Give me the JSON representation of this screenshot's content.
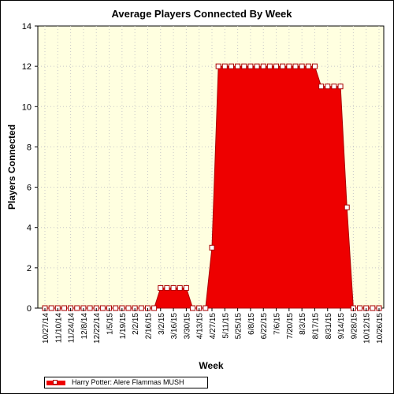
{
  "chart_data": {
    "type": "area",
    "title": "Average Players Connected By Week",
    "xlabel": "Week",
    "ylabel": "Players Connected",
    "ylim": [
      0,
      14
    ],
    "yticks": [
      0,
      2,
      4,
      6,
      8,
      10,
      12,
      14
    ],
    "xtick_labels": [
      "10/27/14",
      "11/10/14",
      "11/24/14",
      "12/8/14",
      "12/22/14",
      "1/5/15",
      "1/19/15",
      "2/2/15",
      "2/16/15",
      "3/2/15",
      "3/16/15",
      "3/30/15",
      "4/13/15",
      "4/27/15",
      "5/11/15",
      "5/25/15",
      "6/8/15",
      "6/22/15",
      "7/6/15",
      "7/20/15",
      "8/3/15",
      "8/17/15",
      "8/31/15",
      "9/14/15",
      "9/28/15",
      "10/12/15",
      "10/26/15"
    ],
    "x": [
      "10/27/14",
      "11/3/14",
      "11/10/14",
      "11/17/14",
      "11/24/14",
      "12/1/14",
      "12/8/14",
      "12/15/14",
      "12/22/14",
      "12/29/14",
      "1/5/15",
      "1/12/15",
      "1/19/15",
      "1/26/15",
      "2/2/15",
      "2/9/15",
      "2/16/15",
      "2/23/15",
      "3/2/15",
      "3/9/15",
      "3/16/15",
      "3/23/15",
      "3/30/15",
      "4/6/15",
      "4/13/15",
      "4/20/15",
      "4/27/15",
      "5/4/15",
      "5/11/15",
      "5/18/15",
      "5/25/15",
      "6/1/15",
      "6/8/15",
      "6/15/15",
      "6/22/15",
      "6/29/15",
      "7/6/15",
      "7/13/15",
      "7/20/15",
      "7/27/15",
      "8/3/15",
      "8/10/15",
      "8/17/15",
      "8/24/15",
      "8/31/15",
      "9/7/15",
      "9/14/15",
      "9/21/15",
      "9/28/15",
      "10/5/15",
      "10/12/15",
      "10/19/15",
      "10/26/15"
    ],
    "series": [
      {
        "name": "Harry Potter: Alere Flammas MUSH",
        "values": [
          0,
          0,
          0,
          0,
          0,
          0,
          0,
          0,
          0,
          0,
          0,
          0,
          0,
          0,
          0,
          0,
          0,
          0,
          1,
          1,
          1,
          1,
          1,
          0,
          0,
          0,
          3,
          12,
          12,
          12,
          12,
          12,
          12,
          12,
          12,
          12,
          12,
          12,
          12,
          12,
          12,
          12,
          12,
          11,
          11,
          11,
          11,
          5,
          0,
          0,
          0,
          0,
          0
        ]
      }
    ],
    "grid": true,
    "legend_position": "bottom-left",
    "colors": {
      "fill": "#ee0000",
      "edge": "#aa0000",
      "plot_background": "#ffffe0",
      "grid": "#c8c8c8",
      "marker_fill": "#ffffff"
    }
  }
}
